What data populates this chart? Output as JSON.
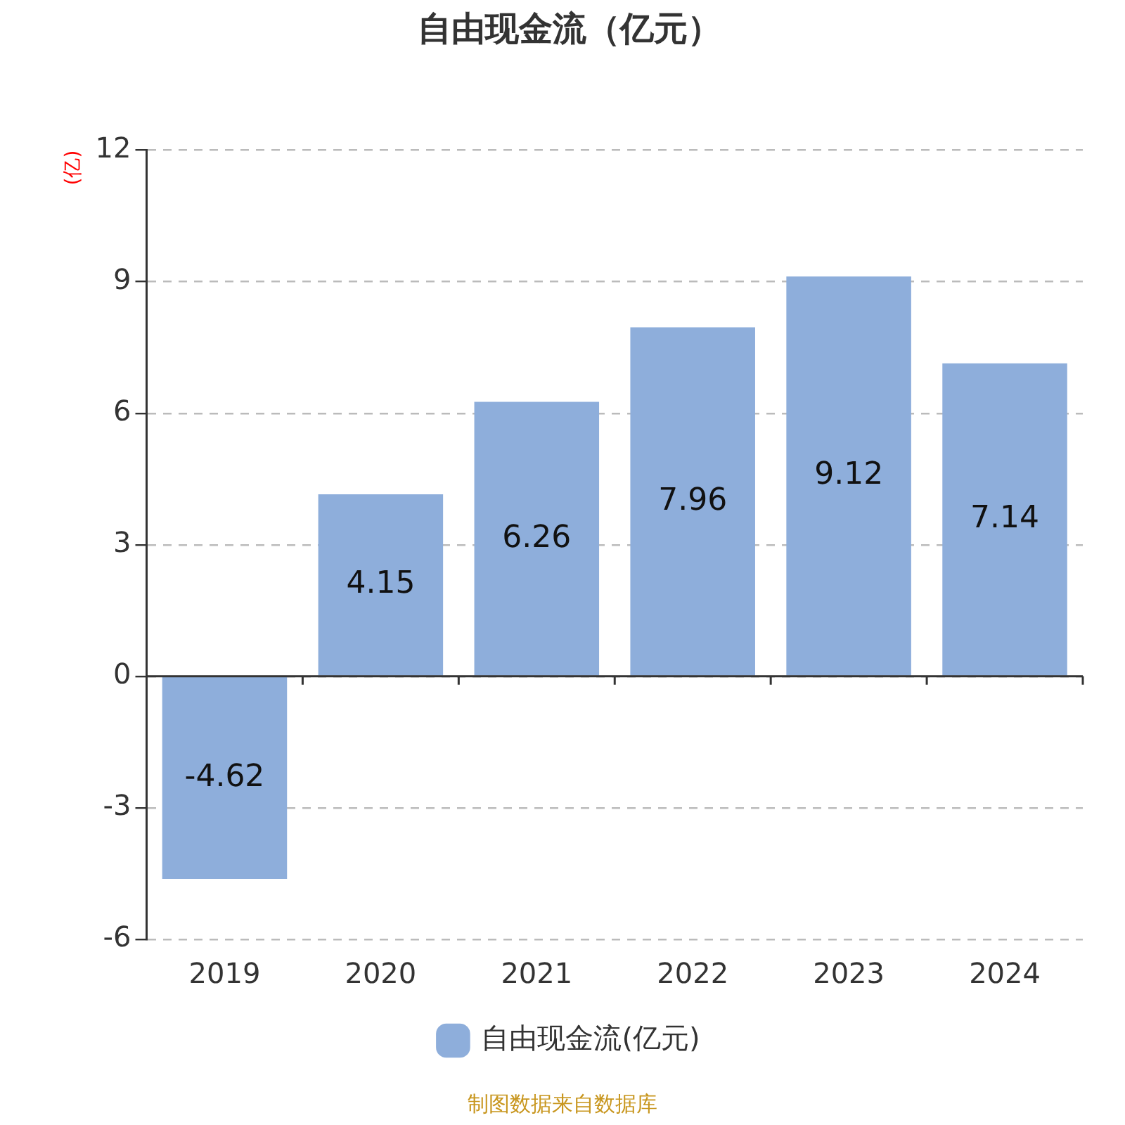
{
  "chart_data": {
    "type": "bar",
    "title": "自由现金流（亿元）",
    "ylabel": "(亿)",
    "categories": [
      "2019",
      "2020",
      "2021",
      "2022",
      "2023",
      "2024"
    ],
    "series": [
      {
        "name": "自由现金流(亿元)",
        "color": "#8eaedb",
        "values": [
          -4.62,
          4.15,
          6.26,
          7.96,
          9.12,
          7.14
        ]
      }
    ],
    "ylim": [
      -6,
      12
    ],
    "yticks": [
      -6,
      -3,
      0,
      3,
      6,
      9,
      12
    ],
    "grid": "y",
    "legend": "bottom",
    "data_labels": true,
    "annotations": [
      "制图数据来自数据库"
    ]
  }
}
